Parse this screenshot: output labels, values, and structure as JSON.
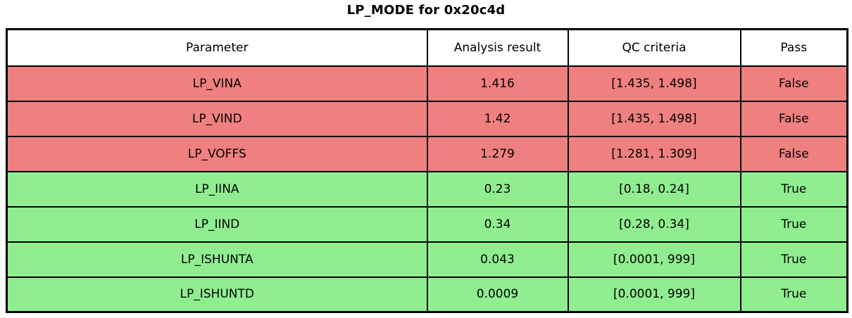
{
  "chart_data": {
    "type": "table",
    "title": "LP_MODE for 0x20c4d",
    "columns": [
      "Parameter",
      "Analysis result",
      "QC criteria",
      "Pass"
    ],
    "rows": [
      {
        "parameter": "LP_VINA",
        "result": "1.416",
        "criteria": "[1.435, 1.498]",
        "pass": "False",
        "status": "fail"
      },
      {
        "parameter": "LP_VIND",
        "result": "1.42",
        "criteria": "[1.435, 1.498]",
        "pass": "False",
        "status": "fail"
      },
      {
        "parameter": "LP_VOFFS",
        "result": "1.279",
        "criteria": "[1.281, 1.309]",
        "pass": "False",
        "status": "fail"
      },
      {
        "parameter": "LP_IINA",
        "result": "0.23",
        "criteria": "[0.18, 0.24]",
        "pass": "True",
        "status": "pass"
      },
      {
        "parameter": "LP_IIND",
        "result": "0.34",
        "criteria": "[0.28, 0.34]",
        "pass": "True",
        "status": "pass"
      },
      {
        "parameter": "LP_ISHUNTA",
        "result": "0.043",
        "criteria": "[0.0001, 999]",
        "pass": "True",
        "status": "pass"
      },
      {
        "parameter": "LP_ISHUNTD",
        "result": "0.0009",
        "criteria": "[0.0001, 999]",
        "pass": "True",
        "status": "pass"
      }
    ],
    "colors": {
      "fail_row": "#f08080",
      "pass_row": "#90ee90",
      "header_bg": "#ffffff",
      "border": "#000000",
      "text": "#000000"
    },
    "layout": {
      "grid": "on",
      "legend": "none"
    }
  }
}
